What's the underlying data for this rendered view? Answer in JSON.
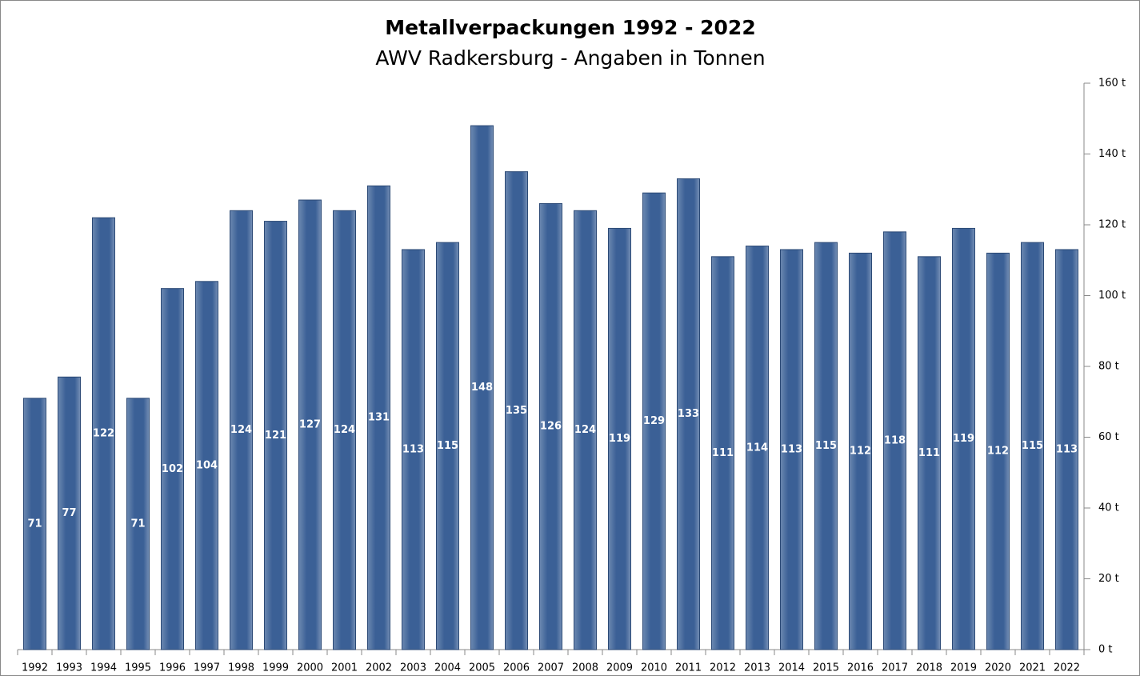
{
  "chart_data": {
    "type": "bar",
    "title": "Metallverpackungen 1992 - 2022",
    "subtitle": "AWV Radkersburg - Angaben in Tonnen",
    "categories": [
      "1992",
      "1993",
      "1994",
      "1995",
      "1996",
      "1997",
      "1998",
      "1999",
      "2000",
      "2001",
      "2002",
      "2003",
      "2004",
      "2005",
      "2006",
      "2007",
      "2008",
      "2009",
      "2010",
      "2011",
      "2012",
      "2013",
      "2014",
      "2015",
      "2016",
      "2017",
      "2018",
      "2019",
      "2020",
      "2021",
      "2022"
    ],
    "values": [
      71,
      77,
      122,
      71,
      102,
      104,
      124,
      121,
      127,
      124,
      131,
      113,
      115,
      148,
      135,
      126,
      124,
      119,
      129,
      133,
      111,
      114,
      113,
      115,
      112,
      118,
      111,
      119,
      112,
      115,
      113
    ],
    "color": "#3b6096",
    "ylim": [
      0,
      160
    ],
    "yticks": [
      {
        "value": 0,
        "label": "0 t"
      },
      {
        "value": 20,
        "label": "20 t"
      },
      {
        "value": 40,
        "label": "40 t"
      },
      {
        "value": 60,
        "label": "60 t"
      },
      {
        "value": 80,
        "label": "80 t"
      },
      {
        "value": 100,
        "label": "100 t"
      },
      {
        "value": 120,
        "label": "120 t"
      },
      {
        "value": 140,
        "label": "140 t"
      },
      {
        "value": 160,
        "label": "160 t"
      }
    ],
    "y_axis_side": "right"
  }
}
